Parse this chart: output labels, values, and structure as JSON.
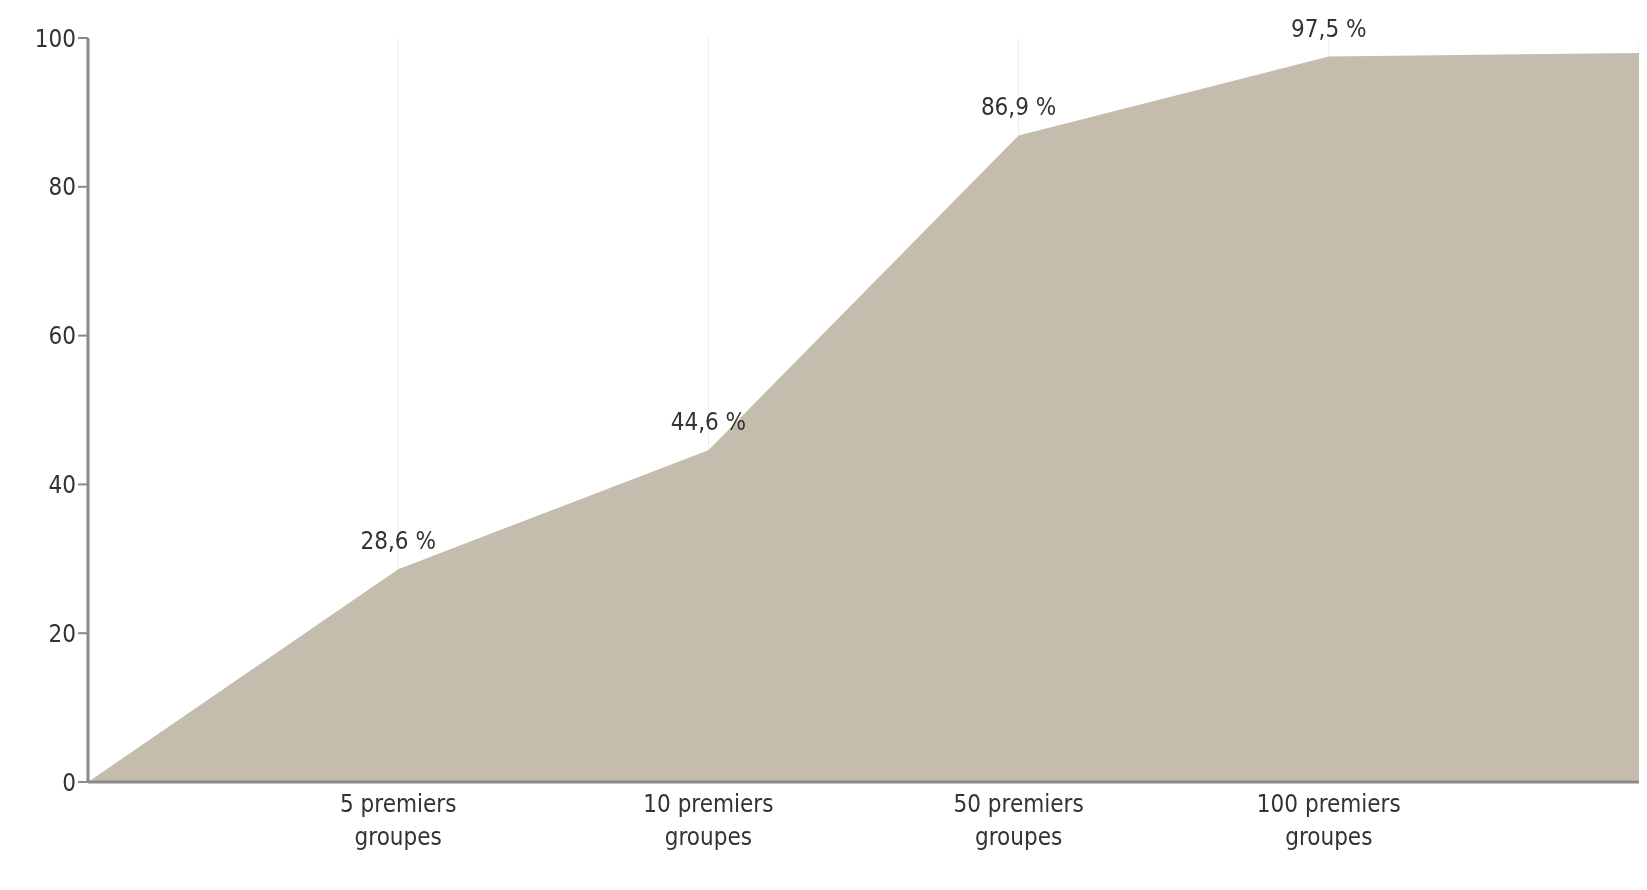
{
  "chart_data": {
    "type": "area",
    "categories": [
      null,
      "5 premiers groupes",
      "10 premiers groupes",
      "50 premiers groupes",
      "100 premiers groupes",
      null
    ],
    "values": [
      0,
      28.6,
      44.6,
      86.9,
      97.5,
      98
    ],
    "value_labels": [
      null,
      "28,6 %",
      "44,6 %",
      "86,9 %",
      "97,5 %",
      null
    ],
    "color": "#c4bcac",
    "ylim": [
      0,
      100
    ],
    "yticks": [
      0,
      20,
      40,
      60,
      80,
      100
    ],
    "grid": "x"
  }
}
